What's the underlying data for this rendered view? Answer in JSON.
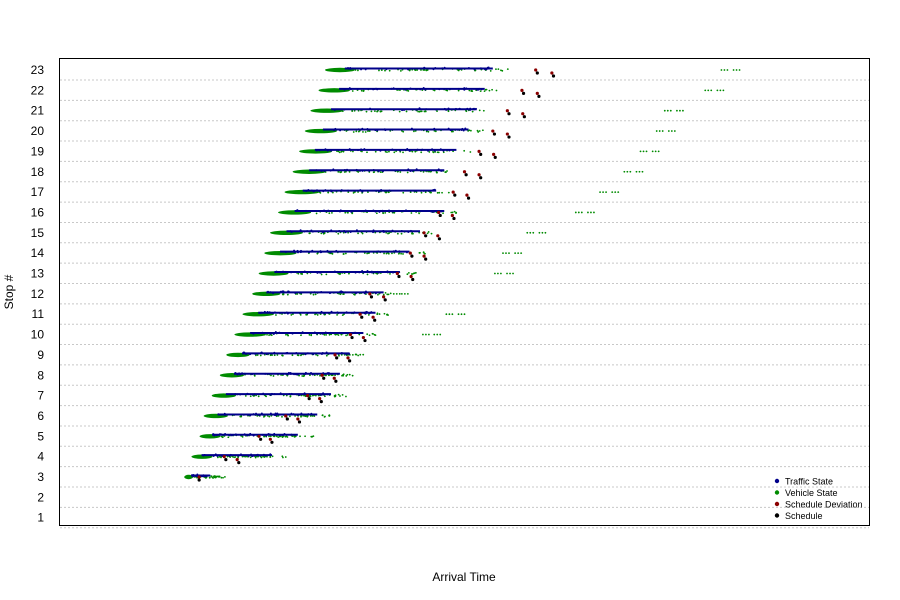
{
  "chart_data": {
    "type": "scatter",
    "xlabel": "Arrival Time",
    "ylabel": "Stop #",
    "ylim": [
      0.5,
      23.5
    ],
    "y_ticks": [
      1,
      2,
      3,
      4,
      5,
      6,
      7,
      8,
      9,
      10,
      11,
      12,
      13,
      14,
      15,
      16,
      17,
      18,
      19,
      20,
      21,
      22,
      23
    ],
    "x_tick_labels": [],
    "grid": "horizontal dotted",
    "legend_position": "bottom-right",
    "series": [
      {
        "name": "Traffic State",
        "color": "#00008b"
      },
      {
        "name": "Vehicle State",
        "color": "#008b00"
      },
      {
        "name": "Schedule Deviation",
        "color": "#8b0000"
      },
      {
        "name": "Schedule",
        "color": "#000000"
      }
    ],
    "stops": [
      {
        "stop": 3,
        "traffic": [
          0.163,
          0.185
        ],
        "vehicle": [
          0.156,
          0.162
        ],
        "vehicle_dense": 0.162,
        "vehicle_far": [],
        "schedule": [
          0.172
        ],
        "deviation": [
          0.172
        ]
      },
      {
        "stop": 4,
        "traffic": [
          0.175,
          0.262
        ],
        "vehicle": [
          0.165,
          0.252
        ],
        "vehicle_dense": 0.186,
        "vehicle_far": [
          0.233,
          0.252
        ],
        "schedule": [
          0.205,
          0.221
        ],
        "deviation": [
          0.203,
          0.219
        ]
      },
      {
        "stop": 5,
        "traffic": [
          0.188,
          0.294
        ],
        "vehicle": [
          0.175,
          0.28
        ],
        "vehicle_dense": 0.196,
        "vehicle_far": [
          0.268,
          0.28
        ],
        "schedule": [
          0.248,
          0.262
        ],
        "deviation": [
          0.246,
          0.26
        ]
      },
      {
        "stop": 6,
        "traffic": [
          0.195,
          0.318
        ],
        "vehicle": [
          0.18,
          0.31
        ],
        "vehicle_dense": 0.205,
        "vehicle_far": [
          0.298,
          0.31
        ],
        "schedule": [
          0.281,
          0.296
        ],
        "deviation": [
          0.279,
          0.294
        ]
      },
      {
        "stop": 7,
        "traffic": [
          0.205,
          0.335
        ],
        "vehicle": [
          0.19,
          0.32
        ],
        "vehicle_dense": 0.215,
        "vehicle_far": [
          0.309,
          0.32
        ],
        "schedule": [
          0.308,
          0.323
        ],
        "deviation": [
          0.306,
          0.321
        ]
      },
      {
        "stop": 8,
        "traffic": [
          0.215,
          0.346
        ],
        "vehicle": [
          0.2,
          0.34
        ],
        "vehicle_dense": 0.225,
        "vehicle_far": [
          0.336,
          0.34
        ],
        "schedule": [
          0.326,
          0.341
        ],
        "deviation": [
          0.324,
          0.339
        ]
      },
      {
        "stop": 9,
        "traffic": [
          0.225,
          0.358
        ],
        "vehicle": [
          0.208,
          0.362
        ],
        "vehicle_dense": 0.232,
        "vehicle_far": [
          0.352,
          0.362
        ],
        "schedule": [
          0.342,
          0.358
        ],
        "deviation": [
          0.34,
          0.356
        ]
      },
      {
        "stop": 10,
        "traffic": [
          0.235,
          0.375
        ],
        "vehicle": [
          0.218,
          0.47
        ],
        "vehicle_dense": 0.252,
        "vehicle_far": [
          0.456,
          0.47
        ],
        "schedule": [
          0.361,
          0.377
        ],
        "deviation": [
          0.359,
          0.375
        ]
      },
      {
        "stop": 11,
        "traffic": [
          0.245,
          0.39
        ],
        "vehicle": [
          0.228,
          0.5
        ],
        "vehicle_dense": 0.262,
        "vehicle_far": [
          0.485,
          0.5
        ],
        "schedule": [
          0.373,
          0.389
        ],
        "deviation": [
          0.371,
          0.387
        ]
      },
      {
        "stop": 12,
        "traffic": [
          0.255,
          0.4
        ],
        "vehicle": [
          0.24,
          0.43
        ],
        "vehicle_dense": 0.27,
        "vehicle_far": [
          0.42,
          0.43
        ],
        "schedule": [
          0.385,
          0.402
        ],
        "deviation": [
          0.383,
          0.4
        ]
      },
      {
        "stop": 13,
        "traffic": [
          0.265,
          0.42
        ],
        "vehicle": [
          0.248,
          0.56
        ],
        "vehicle_dense": 0.28,
        "vehicle_far": [
          0.545,
          0.56
        ],
        "schedule": [
          0.419,
          0.436
        ],
        "deviation": [
          0.417,
          0.434
        ]
      },
      {
        "stop": 14,
        "traffic": [
          0.272,
          0.432
        ],
        "vehicle": [
          0.255,
          0.57
        ],
        "vehicle_dense": 0.29,
        "vehicle_far": [
          0.555,
          0.57
        ],
        "schedule": [
          0.435,
          0.452
        ],
        "deviation": [
          0.433,
          0.45
        ]
      },
      {
        "stop": 15,
        "traffic": [
          0.28,
          0.445
        ],
        "vehicle": [
          0.262,
          0.6
        ],
        "vehicle_dense": 0.298,
        "vehicle_far": [
          0.585,
          0.6
        ],
        "schedule": [
          0.452,
          0.469
        ],
        "deviation": [
          0.45,
          0.467
        ]
      },
      {
        "stop": 16,
        "traffic": [
          0.29,
          0.475
        ],
        "vehicle": [
          0.272,
          0.66
        ],
        "vehicle_dense": 0.308,
        "vehicle_far": [
          0.645,
          0.66
        ],
        "schedule": [
          0.47,
          0.487
        ],
        "deviation": [
          0.468,
          0.485
        ]
      },
      {
        "stop": 17,
        "traffic": [
          0.3,
          0.465
        ],
        "vehicle": [
          0.28,
          0.69
        ],
        "vehicle_dense": 0.318,
        "vehicle_far": [
          0.675,
          0.69
        ],
        "schedule": [
          0.488,
          0.505
        ],
        "deviation": [
          0.486,
          0.503
        ]
      },
      {
        "stop": 18,
        "traffic": [
          0.308,
          0.475
        ],
        "vehicle": [
          0.29,
          0.72
        ],
        "vehicle_dense": 0.326,
        "vehicle_far": [
          0.705,
          0.72
        ],
        "schedule": [
          0.502,
          0.52
        ],
        "deviation": [
          0.5,
          0.518
        ]
      },
      {
        "stop": 19,
        "traffic": [
          0.315,
          0.49
        ],
        "vehicle": [
          0.298,
          0.74
        ],
        "vehicle_dense": 0.334,
        "vehicle_far": [
          0.725,
          0.74
        ],
        "schedule": [
          0.52,
          0.538
        ],
        "deviation": [
          0.518,
          0.536
        ]
      },
      {
        "stop": 20,
        "traffic": [
          0.325,
          0.505
        ],
        "vehicle": [
          0.305,
          0.76
        ],
        "vehicle_dense": 0.34,
        "vehicle_far": [
          0.745,
          0.76
        ],
        "schedule": [
          0.537,
          0.555
        ],
        "deviation": [
          0.535,
          0.553
        ]
      },
      {
        "stop": 21,
        "traffic": [
          0.335,
          0.515
        ],
        "vehicle": [
          0.312,
          0.77
        ],
        "vehicle_dense": 0.348,
        "vehicle_far": [
          0.755,
          0.77
        ],
        "schedule": [
          0.555,
          0.574
        ],
        "deviation": [
          0.553,
          0.572
        ]
      },
      {
        "stop": 22,
        "traffic": [
          0.345,
          0.525
        ],
        "vehicle": [
          0.322,
          0.82
        ],
        "vehicle_dense": 0.356,
        "vehicle_far": [
          0.805,
          0.82
        ],
        "schedule": [
          0.573,
          0.592
        ],
        "deviation": [
          0.571,
          0.59
        ]
      },
      {
        "stop": 23,
        "traffic": [
          0.352,
          0.535
        ],
        "vehicle": [
          0.33,
          0.84
        ],
        "vehicle_dense": 0.362,
        "vehicle_far": [
          0.825,
          0.84
        ],
        "schedule": [
          0.59,
          0.61
        ],
        "deviation": [
          0.588,
          0.608
        ]
      }
    ]
  }
}
